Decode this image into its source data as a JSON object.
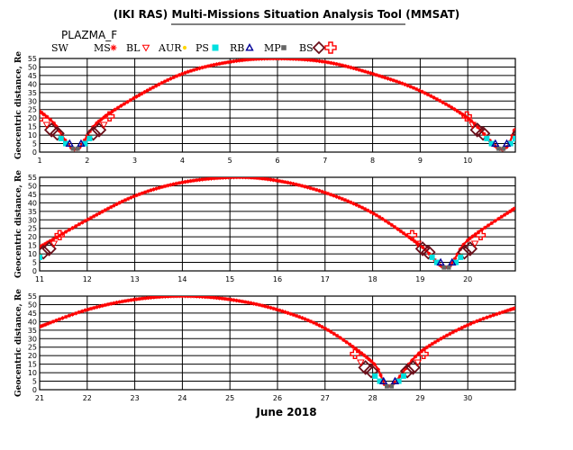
{
  "title": "(IKI RAS) Multi-Missions Situation Analysis Tool (MMSAT)",
  "subtitle": "PLAZMA_F",
  "month_label": "June 2018",
  "legend": [
    {
      "label": "SW",
      "marker": "none",
      "color": "#000000"
    },
    {
      "label": "MS",
      "marker": "star",
      "color": "#ff0000"
    },
    {
      "label": "BL",
      "marker": "tri-down",
      "color": "#ff0000"
    },
    {
      "label": "AUR",
      "marker": "dot",
      "color": "#ffd700"
    },
    {
      "label": "PS",
      "marker": "square",
      "color": "#00e0e0"
    },
    {
      "label": "RB",
      "marker": "tri-up",
      "color": "#000099"
    },
    {
      "label": "MP",
      "marker": "square-small",
      "color": "#666666"
    },
    {
      "label": "BS",
      "marker": "diamond",
      "color": "#6b0f1a"
    },
    {
      "label": "",
      "marker": "cross",
      "color": "#ff0000"
    }
  ],
  "colors": {
    "orbit": "#ff0000",
    "bow_shock": "#6b0f1a",
    "plasma_sheet": "#00e0e0",
    "ring_belt": "#000099",
    "magnetopause": "#666666",
    "aurora": "#ffd700",
    "cross": "#ff0000",
    "grid": "#000000"
  },
  "chart_data": [
    {
      "type": "line",
      "panel": 1,
      "ylabel": "Geocentric distance, Re",
      "xlim": [
        1,
        11
      ],
      "ylim": [
        0,
        55
      ],
      "y_ticks": [
        0,
        5,
        10,
        15,
        20,
        25,
        30,
        35,
        40,
        45,
        50,
        55
      ],
      "x_ticks": [
        1,
        2,
        3,
        4,
        5,
        6,
        7,
        8,
        9,
        10
      ],
      "x_tick_labels": [
        "1",
        "2",
        "3",
        "4",
        "5",
        "6",
        "7",
        "8",
        "9",
        "10"
      ],
      "perigees": [
        1.75,
        10.7
      ],
      "apogee": 5.95,
      "series": [
        {
          "values": [
            [
              1.0,
              24
            ],
            [
              1.3,
              17
            ],
            [
              1.75,
              1.5
            ],
            [
              2.2,
              17
            ],
            [
              3,
              32
            ],
            [
              4,
              46
            ],
            [
              5,
              53
            ],
            [
              5.95,
              55
            ],
            [
              7,
              53
            ],
            [
              8,
              46
            ],
            [
              9,
              36
            ],
            [
              10,
              20
            ],
            [
              10.7,
              1.5
            ],
            [
              11,
              14
            ]
          ]
        }
      ]
    },
    {
      "type": "line",
      "panel": 2,
      "ylabel": "Geocentric distance, Re",
      "xlim": [
        11,
        21
      ],
      "ylim": [
        0,
        55
      ],
      "y_ticks": [
        0,
        5,
        10,
        15,
        20,
        25,
        30,
        35,
        40,
        45,
        50,
        55
      ],
      "x_ticks": [
        11,
        12,
        13,
        14,
        15,
        16,
        17,
        18,
        19,
        20
      ],
      "x_tick_labels": [
        "11",
        "12",
        "13",
        "14",
        "15",
        "16",
        "17",
        "18",
        "19",
        "20"
      ],
      "perigees": [
        10.7,
        19.55
      ],
      "apogee": 15.1,
      "series": [
        {
          "values": [
            [
              11,
              14
            ],
            [
              12,
              30
            ],
            [
              13,
              44
            ],
            [
              14,
              52
            ],
            [
              15.1,
              55
            ],
            [
              16,
              53
            ],
            [
              17,
              46
            ],
            [
              18,
              34
            ],
            [
              19,
              15
            ],
            [
              19.55,
              2
            ],
            [
              20,
              18
            ],
            [
              21,
              37
            ]
          ]
        }
      ]
    },
    {
      "type": "line",
      "panel": 3,
      "ylabel": "Geocentric distance, Re",
      "xlim": [
        21,
        31
      ],
      "ylim": [
        0,
        55
      ],
      "y_ticks": [
        0,
        5,
        10,
        15,
        20,
        25,
        30,
        35,
        40,
        45,
        50,
        55
      ],
      "x_ticks": [
        21,
        22,
        23,
        24,
        25,
        26,
        27,
        28,
        29,
        30
      ],
      "x_tick_labels": [
        "21",
        "22",
        "23",
        "24",
        "25",
        "26",
        "27",
        "28",
        "29",
        "30"
      ],
      "perigees": [
        19.55,
        28.35
      ],
      "apogee": 24.0,
      "series": [
        {
          "values": [
            [
              21,
              37
            ],
            [
              22,
              47
            ],
            [
              23,
              53
            ],
            [
              24,
              55
            ],
            [
              25,
              53
            ],
            [
              26,
              47
            ],
            [
              27,
              36
            ],
            [
              28,
              16
            ],
            [
              28.35,
              2
            ],
            [
              29,
              22
            ],
            [
              30,
              38
            ],
            [
              31,
              48
            ]
          ]
        }
      ]
    }
  ]
}
